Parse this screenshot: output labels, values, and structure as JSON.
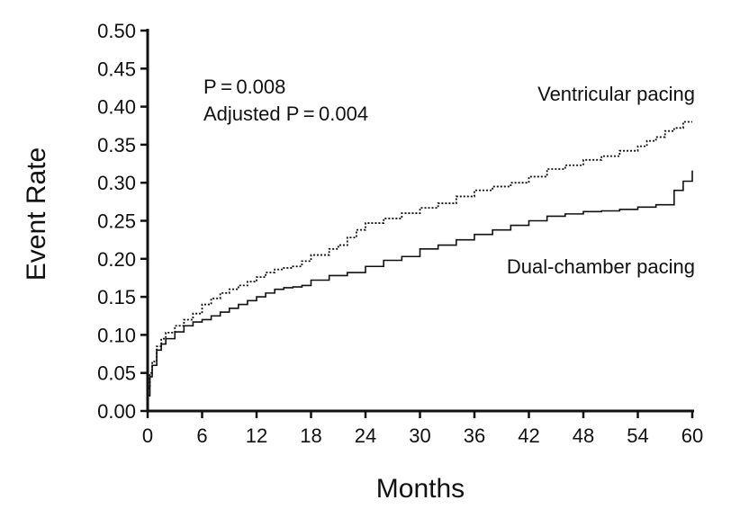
{
  "chart_data": {
    "type": "line",
    "title": "",
    "xlabel": "Months",
    "ylabel": "Event Rate",
    "xlim": [
      0,
      60
    ],
    "ylim": [
      0,
      0.5
    ],
    "x_ticks": [
      "0",
      "6",
      "12",
      "18",
      "24",
      "30",
      "36",
      "42",
      "48",
      "54",
      "60"
    ],
    "y_ticks": [
      "0.00",
      "0.05",
      "0.10",
      "0.15",
      "0.20",
      "0.25",
      "0.30",
      "0.35",
      "0.40",
      "0.45",
      "0.50"
    ],
    "grid": false,
    "legend": "none",
    "annotations": {
      "p_value": "P = 0.008",
      "adjusted_p_value": "Adjusted P = 0.004"
    },
    "series": [
      {
        "name": "Ventricular pacing",
        "line_style": "dotted",
        "x": [
          0,
          0.25,
          0.5,
          1,
          1.5,
          2,
          3,
          4,
          5,
          6,
          7,
          8,
          9,
          10,
          11,
          12,
          13,
          14,
          15,
          16,
          17,
          18,
          20,
          21,
          22,
          23,
          24,
          26,
          28,
          30,
          32,
          34,
          36,
          38,
          40,
          42,
          44,
          46,
          48,
          50,
          52,
          54,
          55,
          56,
          57,
          58,
          59,
          60
        ],
        "y": [
          0.03,
          0.05,
          0.065,
          0.085,
          0.095,
          0.103,
          0.112,
          0.12,
          0.128,
          0.14,
          0.148,
          0.155,
          0.16,
          0.165,
          0.17,
          0.176,
          0.182,
          0.186,
          0.188,
          0.19,
          0.197,
          0.205,
          0.213,
          0.218,
          0.228,
          0.238,
          0.247,
          0.253,
          0.26,
          0.267,
          0.273,
          0.282,
          0.29,
          0.295,
          0.3,
          0.308,
          0.318,
          0.323,
          0.33,
          0.335,
          0.342,
          0.348,
          0.355,
          0.36,
          0.368,
          0.372,
          0.38,
          0.38
        ]
      },
      {
        "name": "Dual-chamber pacing",
        "line_style": "solid",
        "x": [
          0,
          0.25,
          0.5,
          1,
          1.5,
          2,
          3,
          4,
          5,
          6,
          7,
          8,
          9,
          10,
          11,
          12,
          13,
          14,
          15,
          16,
          17,
          18,
          20,
          22,
          24,
          26,
          28,
          30,
          32,
          34,
          36,
          38,
          40,
          42,
          44,
          46,
          48,
          50,
          52,
          54,
          56,
          58,
          59,
          60
        ],
        "y": [
          0.02,
          0.045,
          0.06,
          0.08,
          0.088,
          0.095,
          0.104,
          0.112,
          0.117,
          0.12,
          0.125,
          0.13,
          0.135,
          0.14,
          0.145,
          0.15,
          0.155,
          0.16,
          0.162,
          0.163,
          0.165,
          0.172,
          0.178,
          0.182,
          0.19,
          0.198,
          0.203,
          0.213,
          0.218,
          0.225,
          0.232,
          0.238,
          0.244,
          0.25,
          0.256,
          0.259,
          0.262,
          0.263,
          0.265,
          0.268,
          0.271,
          0.29,
          0.302,
          0.316
        ]
      }
    ]
  }
}
